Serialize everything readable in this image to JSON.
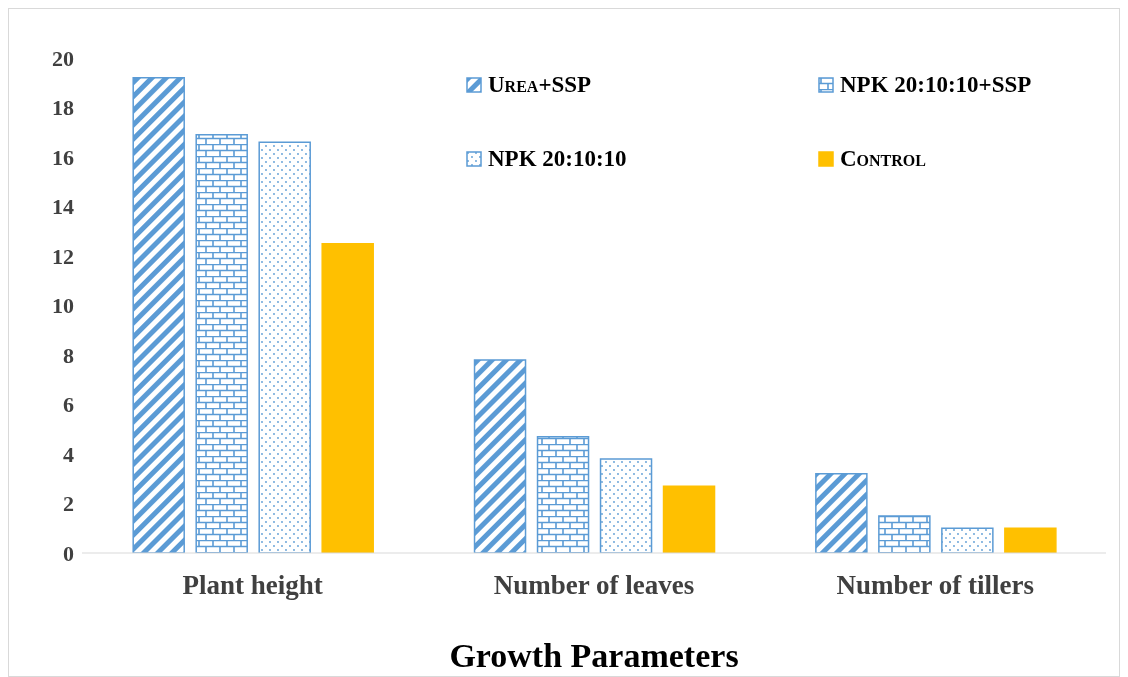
{
  "chart_data": {
    "type": "bar",
    "xlabel": "Growth Parameters",
    "categories": [
      "Plant height",
      "Number of leaves",
      "Number of tillers"
    ],
    "series": [
      {
        "name": "Urea+SSP",
        "color": "#5b9bd5",
        "values": [
          19.2,
          7.8,
          3.2
        ]
      },
      {
        "name": "NPK 20:10:10+SSP",
        "color": "#5b9bd5",
        "values": [
          16.9,
          4.7,
          1.5
        ]
      },
      {
        "name": "NPK 20:10:10",
        "color": "#5b9bd5",
        "values": [
          16.6,
          3.8,
          1.0
        ]
      },
      {
        "name": "Control",
        "color": "#ffc000",
        "values": [
          12.5,
          2.7,
          1.0
        ]
      }
    ],
    "ylim": [
      0,
      20
    ],
    "yticks": [
      0,
      2,
      4,
      6,
      8,
      10,
      12,
      14,
      16,
      18,
      20
    ],
    "grid": false,
    "legend": "top right"
  }
}
